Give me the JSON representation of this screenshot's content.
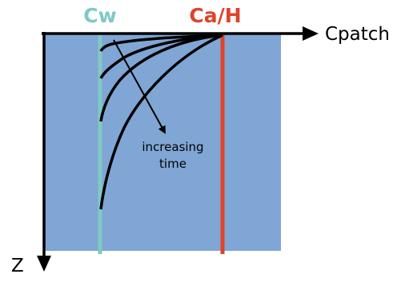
{
  "labels": {
    "cw": "Cw",
    "ca_h": "Ca/H",
    "x_axis": "Cpatch",
    "z_axis": "Z",
    "annotation_line1": "increasing",
    "annotation_line2": "time"
  },
  "colors": {
    "domain_fill": "#7fa6d4",
    "cw_line": "#7fc9c5",
    "ca_h_line": "#e0432a",
    "cw_label": "#7fc9c5",
    "ca_h_label": "#e0432a",
    "axis": "#000000",
    "curves": "#000000"
  }
}
